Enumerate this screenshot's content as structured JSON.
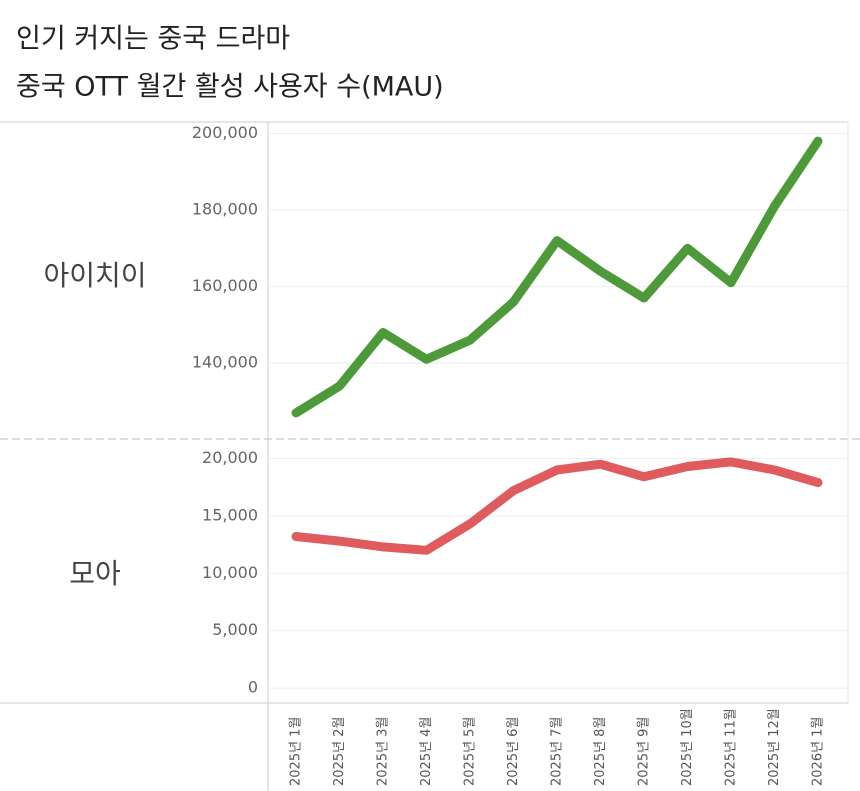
{
  "chart_data": {
    "type": "line",
    "title": "인기 커지는 중국 드라마",
    "subtitle": "중국 OTT 월간 활성 사용자 수(MAU)",
    "categories": [
      "2025년 1월",
      "2025년 2월",
      "2025년 3월",
      "2025년 4월",
      "2025년 5월",
      "2025년 6월",
      "2025년 7월",
      "2025년 8월",
      "2025년 9월",
      "2025년 10월",
      "2025년 11월",
      "2025년 12월",
      "2026년 1월"
    ],
    "grid": true,
    "series": [
      {
        "name": "아이치이",
        "color": "#4e9a3a",
        "values": [
          127000,
          134000,
          148000,
          141000,
          146000,
          156000,
          172000,
          164000,
          157000,
          170000,
          161000,
          181000,
          198000
        ],
        "ylim": [
          122000,
          203000
        ],
        "yticks": [
          {
            "value": 140000,
            "label": "140,000"
          },
          {
            "value": 160000,
            "label": "160,000"
          },
          {
            "value": 180000,
            "label": "180,000"
          },
          {
            "value": 200000,
            "label": "200,000"
          }
        ]
      },
      {
        "name": "모아",
        "color": "#e05b5e",
        "values": [
          13200,
          12800,
          12300,
          12000,
          14300,
          17200,
          19000,
          19500,
          18400,
          19300,
          19700,
          19000,
          17900
        ],
        "ylim": [
          -1300,
          21000
        ],
        "yticks": [
          0,
          {
            "value": 5000,
            "label": "5,000"
          },
          {
            "value": 10000,
            "label": "10,000"
          },
          {
            "value": 15000,
            "label": "15,000"
          },
          {
            "value": 20000,
            "label": "20,000"
          }
        ]
      }
    ]
  }
}
